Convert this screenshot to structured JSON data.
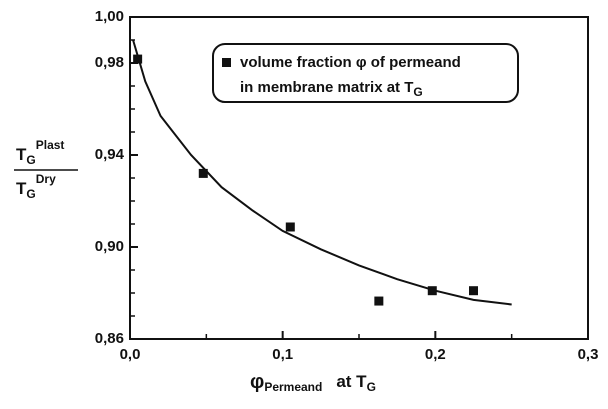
{
  "chart_data": {
    "type": "scatter",
    "xlim": [
      0,
      0.3
    ],
    "ylim": [
      0.86,
      1.0
    ],
    "xticks": [
      {
        "value": 0,
        "label": "0,0"
      },
      {
        "value": 0.1,
        "label": "0,1"
      },
      {
        "value": 0.2,
        "label": "0,2"
      },
      {
        "value": 0.3,
        "label": "0,3"
      }
    ],
    "yticks": [
      {
        "value": 0.86,
        "label": "0,86"
      },
      {
        "value": 0.9,
        "label": "0,90"
      },
      {
        "value": 0.94,
        "label": "0,94"
      },
      {
        "value": 0.98,
        "label": "0,98"
      },
      {
        "value": 1.0,
        "label": "1,00"
      }
    ],
    "xminorticks": [
      0.05,
      0.15,
      0.25
    ],
    "yminorticks": [
      0.87,
      0.88,
      0.89,
      0.91,
      0.92,
      0.93,
      0.95,
      0.96,
      0.97,
      0.99
    ],
    "color": "#111111",
    "series": [
      {
        "x": [
          0.005,
          0.048,
          0.105,
          0.163,
          0.198,
          0.225
        ],
        "values": [
          0.9817,
          0.932,
          0.9087,
          0.8765,
          0.881,
          0.881
        ]
      }
    ],
    "fit": {
      "x": [
        0.002,
        0.01,
        0.02,
        0.04,
        0.06,
        0.08,
        0.1,
        0.125,
        0.15,
        0.175,
        0.2,
        0.225,
        0.25
      ],
      "values": [
        0.99,
        0.972,
        0.957,
        0.94,
        0.926,
        0.916,
        0.907,
        0.899,
        0.892,
        0.886,
        0.881,
        0.877,
        0.875
      ]
    },
    "legend": {
      "lines": [
        "volume fraction φ of permeand",
        "in membrane matrix at T"
      ],
      "subscript": "G"
    },
    "x_label": {
      "base": "φ",
      "sub": "Permeand",
      "text": "at T",
      "sub2": "G"
    },
    "y_label": {
      "numerator": {
        "base": "T",
        "sub": "G",
        "sup": "Plast"
      },
      "denominator": {
        "base": "T",
        "sub": "G",
        "sup": "Dry"
      }
    }
  }
}
